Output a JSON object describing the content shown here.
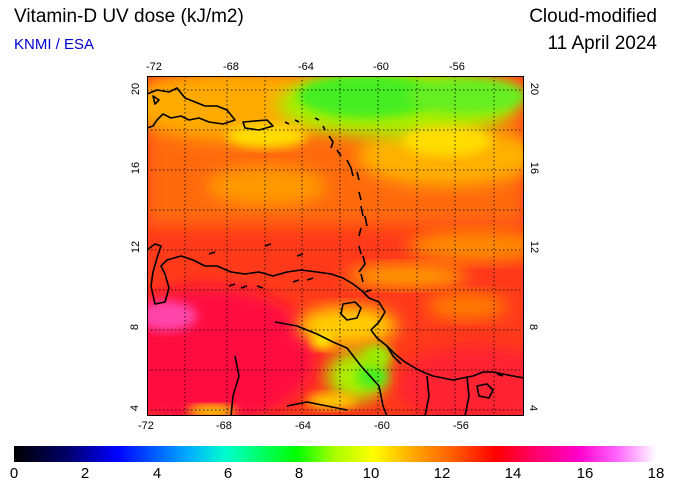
{
  "header": {
    "title": "Vitamin-D UV dose (kJ/m2)",
    "credit": "KNMI / ESA",
    "mode": "Cloud-modified",
    "date": "11 April 2024"
  },
  "map": {
    "top_lon_ticks": [
      "-72",
      "-68",
      "-64",
      "-60",
      "-56"
    ],
    "bottom_lon_ticks": [
      "-72",
      "-68",
      "-64",
      "-60",
      "-56"
    ],
    "left_lat_ticks": [
      "20",
      "16",
      "12",
      "8",
      "4"
    ],
    "right_lat_ticks": [
      "20",
      "16",
      "12",
      "8",
      "4"
    ]
  },
  "colorbar": {
    "labels": [
      "0",
      "2",
      "4",
      "6",
      "8",
      "10",
      "12",
      "14",
      "16",
      "18"
    ],
    "colors": [
      "#000000",
      "#000066",
      "#0000ff",
      "#00aaff",
      "#00ffaa",
      "#00ff00",
      "#aaff00",
      "#ffff00",
      "#ffaa00",
      "#ff5500",
      "#ff0000",
      "#ff0066",
      "#ff00cc",
      "#ff66ff",
      "#ffffff"
    ]
  }
}
